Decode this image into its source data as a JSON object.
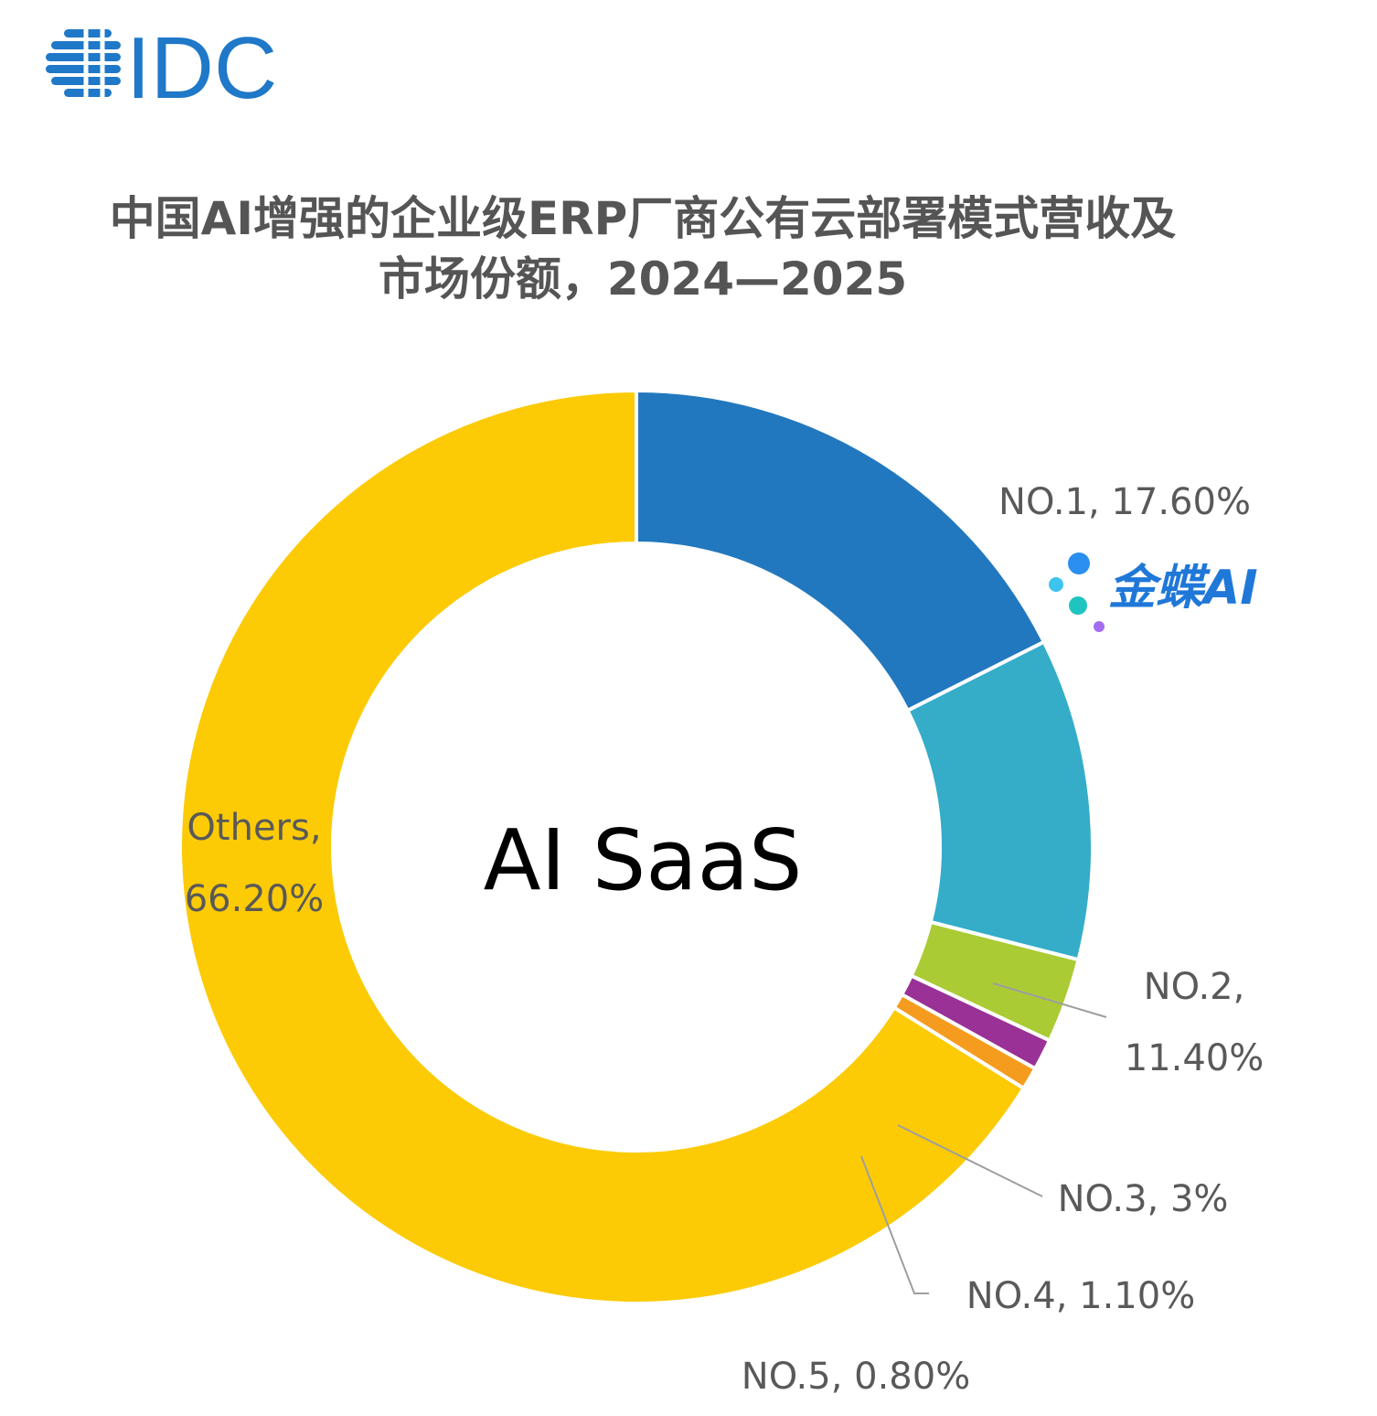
{
  "header": {
    "logo_text": "IDC",
    "title_line1": "中国AI增强的企业级ERP厂商公有云部署模式营收及",
    "title_line2": "市场份额，2024—2025"
  },
  "brand_logo": {
    "text": "金蝶AI"
  },
  "colors": {
    "idc_blue": "#1f78c8",
    "title_gray": "#555555",
    "label_gray": "#595959",
    "leader_line": "#9e9e9e"
  },
  "chart_data": {
    "type": "pie",
    "variant": "donut",
    "center_label": "AI SaaS",
    "slices": [
      {
        "name": "NO.1",
        "value": 17.6,
        "label": "NO.1, 17.60%",
        "color": "#2278be"
      },
      {
        "name": "NO.2",
        "value": 11.4,
        "label_lines": [
          "NO.2,",
          "11.40%"
        ],
        "color": "#35adc9"
      },
      {
        "name": "NO.3",
        "value": 3.0,
        "label": "NO.3, 3%",
        "color": "#abcb35"
      },
      {
        "name": "NO.4",
        "value": 1.1,
        "label": "NO.4, 1.10%",
        "color": "#993196"
      },
      {
        "name": "NO.5",
        "value": 0.8,
        "label": "NO.5, 0.80%",
        "color": "#f59c1f"
      },
      {
        "name": "Others",
        "value": 66.2,
        "label_lines": [
          "Others,",
          "66.20%"
        ],
        "color": "#fccb06"
      }
    ]
  }
}
